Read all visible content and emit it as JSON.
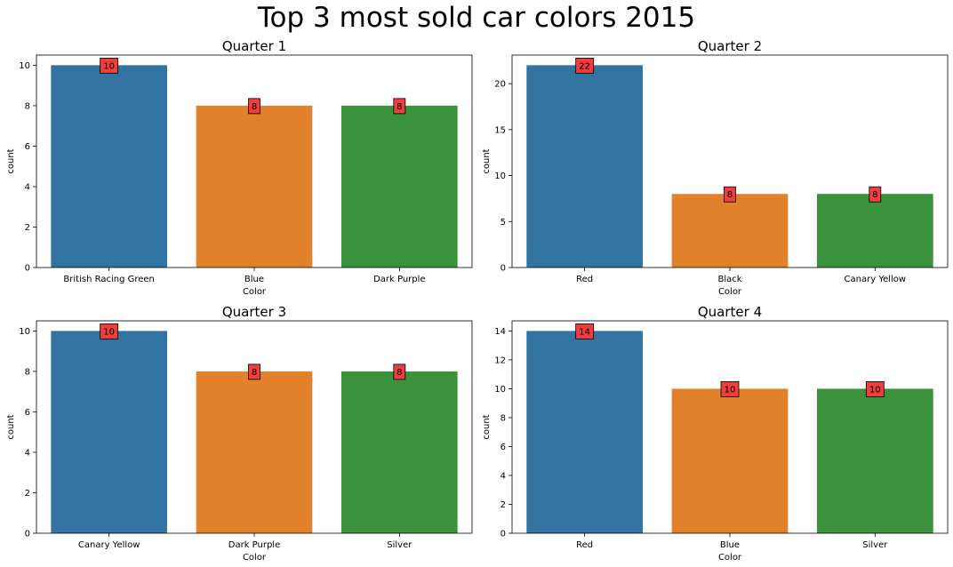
{
  "figure": {
    "title": "Top 3 most sold car colors 2015"
  },
  "bar_colors": [
    "#3274a1",
    "#e1812c",
    "#3a923a"
  ],
  "label_box_color": "#ee3e3e",
  "chart_data": [
    {
      "type": "bar",
      "title": "Quarter 1",
      "xlabel": "Color",
      "ylabel": "count",
      "categories": [
        "British Racing Green",
        "Blue",
        "Dark Purple"
      ],
      "values": [
        10,
        8,
        8
      ],
      "data_labels": [
        "10",
        "8",
        "8"
      ],
      "ylim": [
        0,
        10.5
      ],
      "yticks": [
        0,
        2,
        4,
        6,
        8,
        10
      ],
      "grid": false
    },
    {
      "type": "bar",
      "title": "Quarter 2",
      "xlabel": "Color",
      "ylabel": "count",
      "categories": [
        "Red",
        "Black",
        "Canary Yellow"
      ],
      "values": [
        22,
        8,
        8
      ],
      "data_labels": [
        "22",
        "8",
        "8"
      ],
      "ylim": [
        0,
        23.1
      ],
      "yticks": [
        0,
        5,
        10,
        15,
        20
      ],
      "grid": false
    },
    {
      "type": "bar",
      "title": "Quarter 3",
      "xlabel": "Color",
      "ylabel": "count",
      "categories": [
        "Canary Yellow",
        "Dark Purple",
        "Silver"
      ],
      "values": [
        10,
        8,
        8
      ],
      "data_labels": [
        "10",
        "8",
        "8"
      ],
      "ylim": [
        0,
        10.5
      ],
      "yticks": [
        0,
        2,
        4,
        6,
        8,
        10
      ],
      "grid": false
    },
    {
      "type": "bar",
      "title": "Quarter 4",
      "xlabel": "Color",
      "ylabel": "count",
      "categories": [
        "Red",
        "Blue",
        "Silver"
      ],
      "values": [
        14,
        10,
        10
      ],
      "data_labels": [
        "14",
        "10",
        "10"
      ],
      "ylim": [
        0,
        14.7
      ],
      "yticks": [
        0,
        2,
        4,
        6,
        8,
        10,
        12,
        14
      ],
      "grid": false
    }
  ]
}
